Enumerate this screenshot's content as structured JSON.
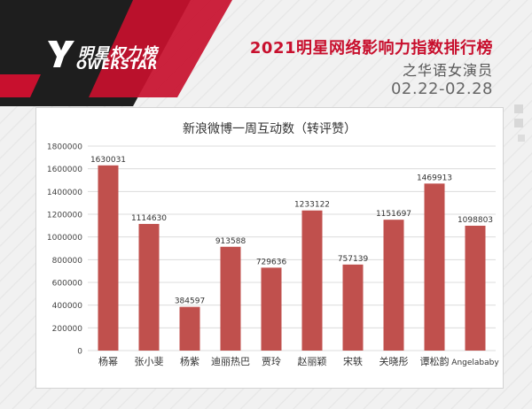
{
  "header": {
    "logo_cn": "明星权力榜",
    "logo_en": "OWERSTAR",
    "title": "2021明星网络影响力指数排行榜",
    "subtitle": "之华语女演员",
    "date_range": "02.22-02.28"
  },
  "colors": {
    "brand_red": "#c8102e",
    "bar_fill": "#c0504d",
    "band_dark": "#1e1e1e"
  },
  "chart_data": {
    "type": "bar",
    "title": "新浪微博一周互动数（转评赞）",
    "categories": [
      "杨幂",
      "张小斐",
      "杨紫",
      "迪丽热巴",
      "贾玲",
      "赵丽颖",
      "宋轶",
      "关晓彤",
      "谭松韵",
      "Angelababy"
    ],
    "values": [
      1630031,
      1114630,
      384597,
      913588,
      729636,
      1233122,
      757139,
      1151697,
      1469913,
      1098803
    ],
    "ylim": [
      0,
      1800000
    ],
    "yticks": [
      0,
      200000,
      400000,
      600000,
      800000,
      1000000,
      1200000,
      1400000,
      1600000,
      1800000
    ],
    "xlabel": "",
    "ylabel": "",
    "grid": true,
    "data_labels": true
  }
}
